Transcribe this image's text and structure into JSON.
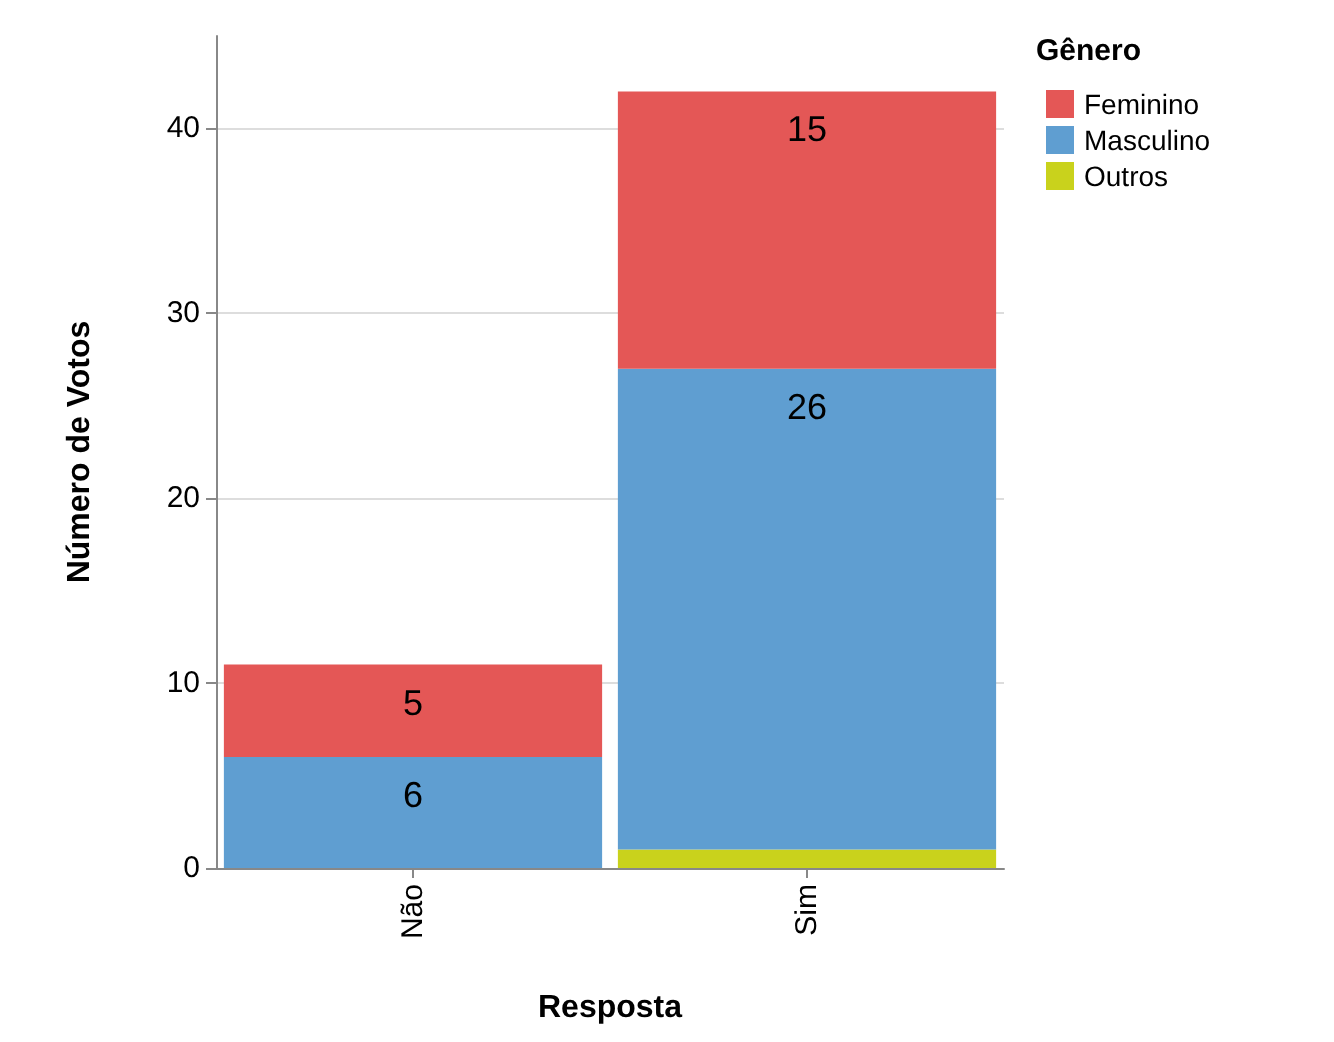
{
  "chart_data": {
    "type": "bar",
    "stacked": true,
    "xlabel": "Resposta",
    "ylabel": "Número de Votos",
    "legend_title": "Gênero",
    "categories": [
      "Não",
      "Sim"
    ],
    "series": [
      {
        "name": "Outros",
        "color": "#c9d21c",
        "values": [
          0,
          1
        ],
        "value_labels": [
          null,
          null
        ]
      },
      {
        "name": "Masculino",
        "color": "#5f9ed1",
        "values": [
          6,
          26
        ],
        "value_labels": [
          "6",
          "26"
        ]
      },
      {
        "name": "Feminino",
        "color": "#e45756",
        "values": [
          5,
          15
        ],
        "value_labels": [
          "5",
          "15"
        ]
      }
    ],
    "ylim": [
      0,
      45
    ],
    "yticks": [
      0,
      10,
      20,
      30,
      40
    ],
    "grid": "y",
    "legend": "top right"
  }
}
